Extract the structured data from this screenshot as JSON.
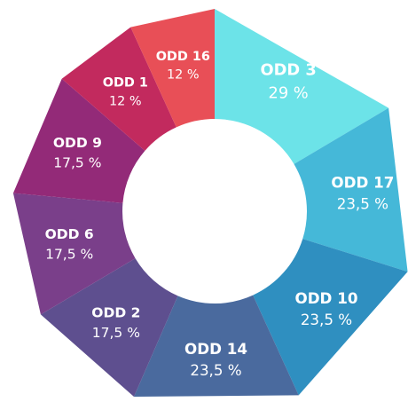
{
  "chart_data": {
    "type": "donut",
    "categories": [
      "ODD 3",
      "ODD 17",
      "ODD 10",
      "ODD 14",
      "ODD 2",
      "ODD 6",
      "ODD 9",
      "ODD 1",
      "ODD 16"
    ],
    "values": [
      29,
      23.5,
      23.5,
      23.5,
      17.5,
      17.5,
      17.5,
      12,
      12
    ],
    "value_labels": [
      "29 %",
      "23,5 %",
      "23,5 %",
      "23,5 %",
      "17,5 %",
      "17,5 %",
      "17,5 %",
      "12 %",
      "12 %"
    ],
    "colors": [
      "#6ce3e8",
      "#45b8d8",
      "#2f8fc0",
      "#4a6a9e",
      "#5e4f8f",
      "#7a3f8a",
      "#932a78",
      "#c22a5e",
      "#e84f57"
    ]
  }
}
